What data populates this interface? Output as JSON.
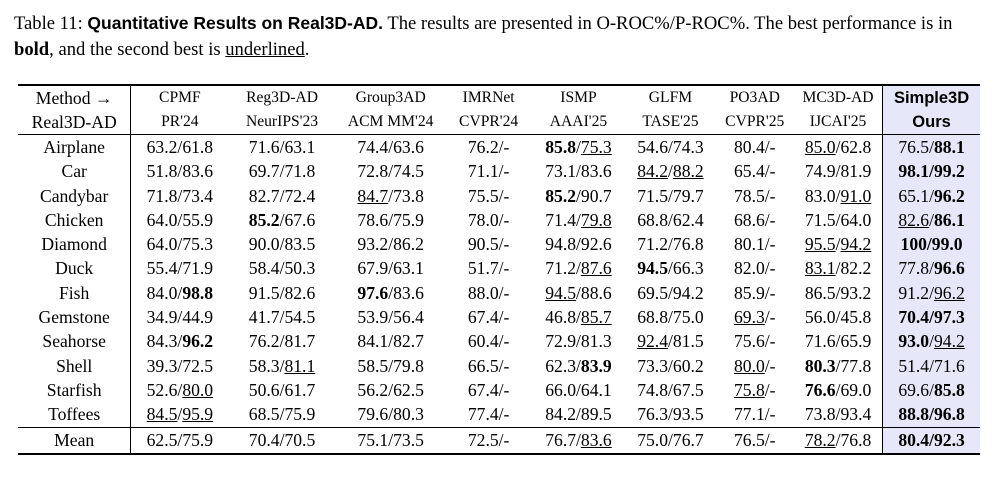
{
  "caption": {
    "label": "Table 11:",
    "title": "Quantitative Results on Real3D-AD.",
    "line1_rest": " The results are presented in O-ROC%/P-ROC%. The best performance is in",
    "bold_word": "bold",
    "mid": ", and the second best is ",
    "underline_word": "underlined",
    "end": "."
  },
  "header": {
    "method_line1": "Method →",
    "method_line2": "Real3D-AD",
    "columns": [
      {
        "name": "CPMF",
        "venue": "PR'24"
      },
      {
        "name": "Reg3D-AD",
        "venue": "NeurIPS'23"
      },
      {
        "name": "Group3AD",
        "venue": "ACM MM'24"
      },
      {
        "name": "IMRNet",
        "venue": "CVPR'24"
      },
      {
        "name": "ISMP",
        "venue": "AAAI'25"
      },
      {
        "name": "GLFM",
        "venue": "TASE'25"
      },
      {
        "name": "PO3AD",
        "venue": "CVPR'25"
      },
      {
        "name": "MC3D-AD",
        "venue": "IJCAI'25"
      },
      {
        "name": "Simple3D",
        "venue": "Ours"
      }
    ]
  },
  "rows": [
    {
      "cat": "Airplane",
      "cells": [
        [
          "63.2",
          "61.8"
        ],
        [
          "71.6",
          "63.1"
        ],
        [
          "74.4",
          "63.6"
        ],
        [
          "76.2",
          "-"
        ],
        [
          "85.8",
          "75.3"
        ],
        [
          "54.6",
          "74.3"
        ],
        [
          "80.4",
          "-"
        ],
        [
          "85.0",
          "62.8"
        ],
        [
          "76.5",
          "88.1"
        ]
      ]
    },
    {
      "cat": "Car",
      "cells": [
        [
          "51.8",
          "83.6"
        ],
        [
          "69.7",
          "71.8"
        ],
        [
          "72.8",
          "74.5"
        ],
        [
          "71.1",
          "-"
        ],
        [
          "73.1",
          "83.6"
        ],
        [
          "84.2",
          "88.2"
        ],
        [
          "65.4",
          "-"
        ],
        [
          "74.9",
          "81.9"
        ],
        [
          "98.1",
          "99.2"
        ]
      ]
    },
    {
      "cat": "Candybar",
      "cells": [
        [
          "71.8",
          "73.4"
        ],
        [
          "82.7",
          "72.4"
        ],
        [
          "84.7",
          "73.8"
        ],
        [
          "75.5",
          "-"
        ],
        [
          "85.2",
          "90.7"
        ],
        [
          "71.5",
          "79.7"
        ],
        [
          "78.5",
          "-"
        ],
        [
          "83.0",
          "91.0"
        ],
        [
          "65.1",
          "96.2"
        ]
      ]
    },
    {
      "cat": "Chicken",
      "cells": [
        [
          "64.0",
          "55.9"
        ],
        [
          "85.2",
          "67.6"
        ],
        [
          "78.6",
          "75.9"
        ],
        [
          "78.0",
          "-"
        ],
        [
          "71.4",
          "79.8"
        ],
        [
          "68.8",
          "62.4"
        ],
        [
          "68.6",
          "-"
        ],
        [
          "71.5",
          "64.0"
        ],
        [
          "82.6",
          "86.1"
        ]
      ]
    },
    {
      "cat": "Diamond",
      "cells": [
        [
          "64.0",
          "75.3"
        ],
        [
          "90.0",
          "83.5"
        ],
        [
          "93.2",
          "86.2"
        ],
        [
          "90.5",
          "-"
        ],
        [
          "94.8",
          "92.6"
        ],
        [
          "71.2",
          "76.8"
        ],
        [
          "80.1",
          "-"
        ],
        [
          "95.5",
          "94.2"
        ],
        [
          "100",
          "99.0"
        ]
      ]
    },
    {
      "cat": "Duck",
      "cells": [
        [
          "55.4",
          "71.9"
        ],
        [
          "58.4",
          "50.3"
        ],
        [
          "67.9",
          "63.1"
        ],
        [
          "51.7",
          "-"
        ],
        [
          "71.2",
          "87.6"
        ],
        [
          "94.5",
          "66.3"
        ],
        [
          "82.0",
          "-"
        ],
        [
          "83.1",
          "82.2"
        ],
        [
          "77.8",
          "96.6"
        ]
      ]
    },
    {
      "cat": "Fish",
      "cells": [
        [
          "84.0",
          "98.8"
        ],
        [
          "91.5",
          "82.6"
        ],
        [
          "97.6",
          "83.6"
        ],
        [
          "88.0",
          "-"
        ],
        [
          "94.5",
          "88.6"
        ],
        [
          "69.5",
          "94.2"
        ],
        [
          "85.9",
          "-"
        ],
        [
          "86.5",
          "93.2"
        ],
        [
          "91.2",
          "96.2"
        ]
      ]
    },
    {
      "cat": "Gemstone",
      "cells": [
        [
          "34.9",
          "44.9"
        ],
        [
          "41.7",
          "54.5"
        ],
        [
          "53.9",
          "56.4"
        ],
        [
          "67.4",
          "-"
        ],
        [
          "46.8",
          "85.7"
        ],
        [
          "68.8",
          "75.0"
        ],
        [
          "69.3",
          "-"
        ],
        [
          "56.0",
          "45.8"
        ],
        [
          "70.4",
          "97.3"
        ]
      ]
    },
    {
      "cat": "Seahorse",
      "cells": [
        [
          "84.3",
          "96.2"
        ],
        [
          "76.2",
          "81.7"
        ],
        [
          "84.1",
          "82.7"
        ],
        [
          "60.4",
          "-"
        ],
        [
          "72.9",
          "81.3"
        ],
        [
          "92.4",
          "81.5"
        ],
        [
          "75.6",
          "-"
        ],
        [
          "71.6",
          "65.9"
        ],
        [
          "93.0",
          "94.2"
        ]
      ]
    },
    {
      "cat": "Shell",
      "cells": [
        [
          "39.3",
          "72.5"
        ],
        [
          "58.3",
          "81.1"
        ],
        [
          "58.5",
          "79.8"
        ],
        [
          "66.5",
          "-"
        ],
        [
          "62.3",
          "83.9"
        ],
        [
          "73.3",
          "60.2"
        ],
        [
          "80.0",
          "-"
        ],
        [
          "80.3",
          "77.8"
        ],
        [
          "51.4",
          "71.6"
        ]
      ]
    },
    {
      "cat": "Starfish",
      "cells": [
        [
          "52.6",
          "80.0"
        ],
        [
          "50.6",
          "61.7"
        ],
        [
          "56.2",
          "62.5"
        ],
        [
          "67.4",
          "-"
        ],
        [
          "66.0",
          "64.1"
        ],
        [
          "74.8",
          "67.5"
        ],
        [
          "75.8",
          "-"
        ],
        [
          "76.6",
          "69.0"
        ],
        [
          "69.6",
          "85.8"
        ]
      ]
    },
    {
      "cat": "Toffees",
      "cells": [
        [
          "84.5",
          "95.9"
        ],
        [
          "68.5",
          "75.9"
        ],
        [
          "79.6",
          "80.3"
        ],
        [
          "77.4",
          "-"
        ],
        [
          "84.2",
          "89.5"
        ],
        [
          "76.3",
          "93.5"
        ],
        [
          "77.1",
          "-"
        ],
        [
          "73.8",
          "93.4"
        ],
        [
          "88.8",
          "96.8"
        ]
      ]
    }
  ],
  "mean": {
    "cat": "Mean",
    "cells": [
      [
        "62.5",
        "75.9"
      ],
      [
        "70.4",
        "70.5"
      ],
      [
        "75.1",
        "73.5"
      ],
      [
        "72.5",
        "-"
      ],
      [
        "76.7",
        "83.6"
      ],
      [
        "75.0",
        "76.7"
      ],
      [
        "76.5",
        "-"
      ],
      [
        "78.2",
        "76.8"
      ],
      [
        "80.4",
        "92.3"
      ]
    ]
  },
  "styles": {
    "Airplane": [
      [
        "",
        ""
      ],
      [
        "",
        ""
      ],
      [
        "",
        ""
      ],
      [
        "",
        ""
      ],
      [
        "b",
        "u"
      ],
      [
        "",
        ""
      ],
      [
        "",
        ""
      ],
      [
        "u",
        ""
      ],
      [
        "",
        "b"
      ]
    ],
    "Car": [
      [
        "",
        ""
      ],
      [
        "",
        ""
      ],
      [
        "",
        ""
      ],
      [
        "",
        ""
      ],
      [
        "",
        ""
      ],
      [
        "u",
        "u"
      ],
      [
        "",
        ""
      ],
      [
        "",
        ""
      ],
      [
        "b",
        "b"
      ]
    ],
    "Candybar": [
      [
        "",
        ""
      ],
      [
        "",
        ""
      ],
      [
        "u",
        ""
      ],
      [
        "",
        ""
      ],
      [
        "b",
        ""
      ],
      [
        "",
        ""
      ],
      [
        "",
        ""
      ],
      [
        "",
        "u"
      ],
      [
        "",
        "b"
      ]
    ],
    "Chicken": [
      [
        "",
        ""
      ],
      [
        "b",
        ""
      ],
      [
        "",
        ""
      ],
      [
        "",
        ""
      ],
      [
        "",
        "u"
      ],
      [
        "",
        ""
      ],
      [
        "",
        ""
      ],
      [
        "",
        ""
      ],
      [
        "u",
        "b"
      ]
    ],
    "Diamond": [
      [
        "",
        ""
      ],
      [
        "",
        ""
      ],
      [
        "",
        ""
      ],
      [
        "",
        ""
      ],
      [
        "",
        ""
      ],
      [
        "",
        ""
      ],
      [
        "",
        ""
      ],
      [
        "u",
        "u"
      ],
      [
        "b",
        "b"
      ]
    ],
    "Duck": [
      [
        "",
        ""
      ],
      [
        "",
        ""
      ],
      [
        "",
        ""
      ],
      [
        "",
        ""
      ],
      [
        "",
        "u"
      ],
      [
        "b",
        ""
      ],
      [
        "",
        ""
      ],
      [
        "u",
        ""
      ],
      [
        "",
        "b"
      ]
    ],
    "Fish": [
      [
        "",
        "b"
      ],
      [
        "",
        ""
      ],
      [
        "b",
        ""
      ],
      [
        "",
        ""
      ],
      [
        "u",
        ""
      ],
      [
        "",
        ""
      ],
      [
        "",
        ""
      ],
      [
        "",
        ""
      ],
      [
        "",
        "u"
      ]
    ],
    "Gemstone": [
      [
        "",
        ""
      ],
      [
        "",
        ""
      ],
      [
        "",
        ""
      ],
      [
        "",
        ""
      ],
      [
        "",
        "u"
      ],
      [
        "",
        ""
      ],
      [
        "u",
        ""
      ],
      [
        "",
        ""
      ],
      [
        "b",
        "b"
      ]
    ],
    "Seahorse": [
      [
        "",
        "b"
      ],
      [
        "",
        ""
      ],
      [
        "",
        ""
      ],
      [
        "",
        ""
      ],
      [
        "",
        ""
      ],
      [
        "u",
        ""
      ],
      [
        "",
        ""
      ],
      [
        "",
        ""
      ],
      [
        "b",
        "u"
      ]
    ],
    "Shell": [
      [
        "",
        ""
      ],
      [
        "",
        "u"
      ],
      [
        "",
        ""
      ],
      [
        "",
        ""
      ],
      [
        "",
        "b"
      ],
      [
        "",
        ""
      ],
      [
        "u",
        ""
      ],
      [
        "b",
        ""
      ],
      [
        "",
        ""
      ]
    ],
    "Starfish": [
      [
        "",
        "u"
      ],
      [
        "",
        ""
      ],
      [
        "",
        ""
      ],
      [
        "",
        ""
      ],
      [
        "",
        ""
      ],
      [
        "",
        ""
      ],
      [
        "u",
        ""
      ],
      [
        "b",
        ""
      ],
      [
        "",
        "b"
      ]
    ],
    "Toffees": [
      [
        "u",
        "u"
      ],
      [
        "",
        ""
      ],
      [
        "",
        ""
      ],
      [
        "",
        ""
      ],
      [
        "",
        ""
      ],
      [
        "",
        ""
      ],
      [
        "",
        ""
      ],
      [
        "",
        ""
      ],
      [
        "b",
        "b"
      ]
    ],
    "Mean": [
      [
        "",
        ""
      ],
      [
        "",
        ""
      ],
      [
        "",
        ""
      ],
      [
        "",
        ""
      ],
      [
        "",
        "u"
      ],
      [
        "",
        ""
      ],
      [
        "",
        ""
      ],
      [
        "u",
        ""
      ],
      [
        "b",
        "b"
      ]
    ]
  },
  "colors": {
    "ours_bg": "#e6e8fa"
  }
}
